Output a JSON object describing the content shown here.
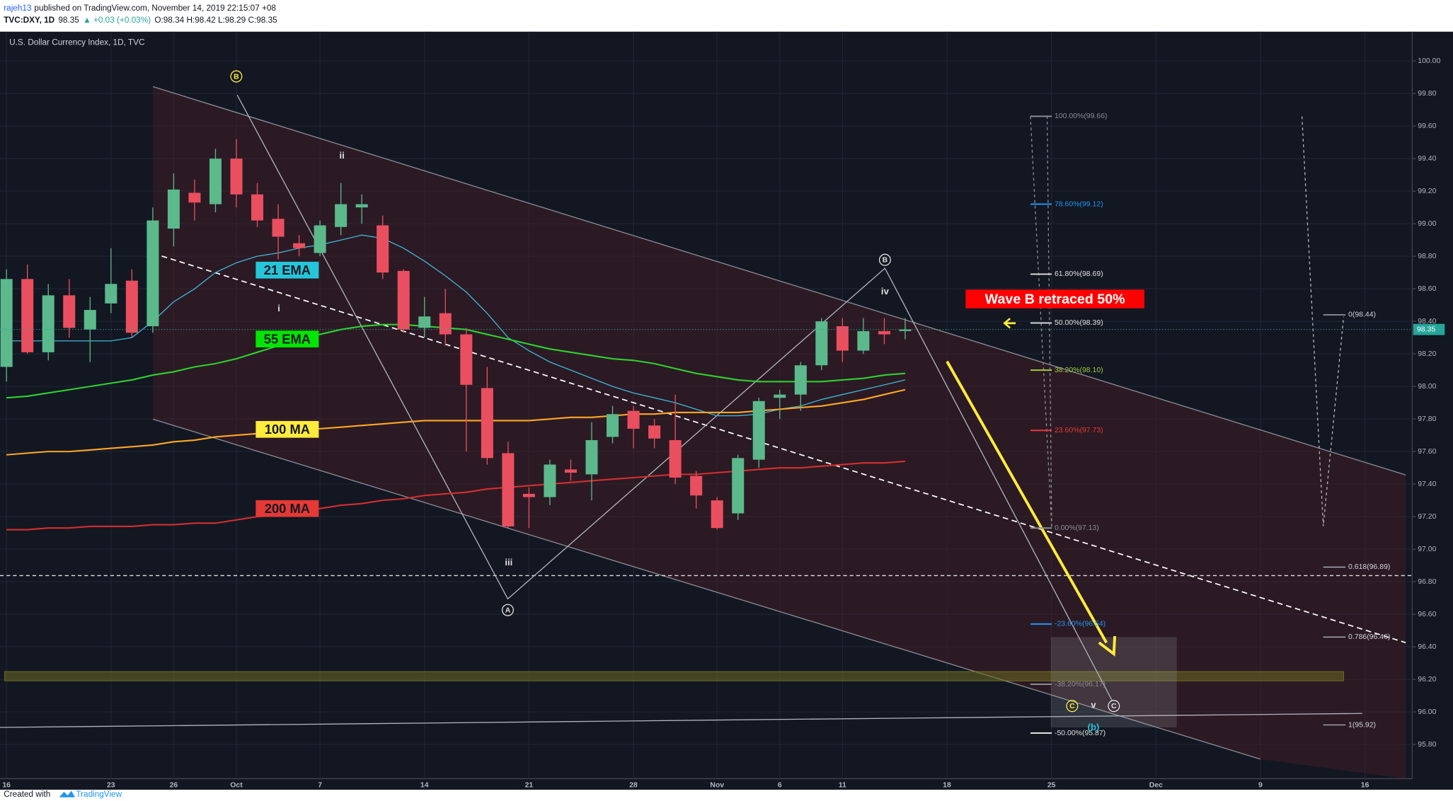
{
  "header": {
    "author": "rajeh13",
    "published": "published on TradingView.com, November 14, 2019 22:15:07 +08",
    "symbol": "TVC:DXY, 1D",
    "last": "98.35",
    "change": "▲ +0.03 (+0.03%)",
    "ohlc": "O:98.34 H:98.42 L:98.29 C:98.35"
  },
  "footer": {
    "text": "Created with",
    "brand": "TradingView"
  },
  "chart_data": {
    "type": "candlestick",
    "title": "U.S. Dollar Currency Index, 1D, TVC",
    "categories": [
      "16",
      null,
      null,
      null,
      null,
      "23",
      null,
      null,
      "26",
      null,
      null,
      "Oct",
      null,
      null,
      null,
      "7",
      null,
      null,
      null,
      null,
      "14",
      null,
      null,
      null,
      null,
      "21",
      null,
      null,
      null,
      null,
      "28",
      null,
      null,
      null,
      "Nov",
      null,
      null,
      "6",
      null,
      null,
      "11",
      null,
      null,
      null,
      null,
      "18",
      null,
      null,
      null,
      null,
      "25",
      null,
      null,
      null,
      null,
      "Dec",
      null,
      null,
      null,
      null,
      "9",
      null,
      null,
      null,
      null,
      "16"
    ],
    "open": [
      98.12,
      98.66,
      98.21,
      98.56,
      98.35,
      98.51,
      98.65,
      98.37,
      98.97,
      99.19,
      99.12,
      99.4,
      99.18,
      99.03,
      98.88,
      98.82,
      98.98,
      99.1,
      98.99,
      98.71,
      98.36,
      98.45,
      98.32,
      97.99,
      97.59,
      97.34,
      97.32,
      97.49,
      97.46,
      97.69,
      97.85,
      97.76,
      97.67,
      97.45,
      97.3,
      97.22,
      97.55,
      97.93,
      97.95,
      98.13,
      98.37,
      98.22,
      98.34,
      98.34,
      null,
      null,
      null,
      null,
      null,
      null,
      null,
      null,
      null,
      null,
      null,
      null,
      null,
      null,
      null,
      null,
      null,
      null,
      null,
      null,
      null,
      null
    ],
    "high": [
      98.72,
      98.75,
      98.63,
      98.66,
      98.55,
      98.85,
      98.72,
      99.1,
      99.31,
      99.27,
      99.46,
      99.52,
      99.25,
      99.12,
      98.93,
      99.02,
      99.25,
      99.18,
      99.05,
      98.72,
      98.55,
      98.6,
      98.36,
      98.12,
      97.66,
      97.38,
      97.55,
      97.55,
      97.78,
      97.88,
      97.88,
      97.8,
      97.95,
      97.48,
      97.32,
      97.58,
      97.93,
      97.98,
      98.15,
      98.42,
      98.42,
      98.42,
      98.42,
      98.42,
      null,
      null,
      null,
      null,
      null,
      null,
      null,
      null,
      null,
      null,
      null,
      null,
      null,
      null,
      null,
      null,
      null,
      null,
      null,
      null,
      null,
      null
    ],
    "low": [
      98.03,
      98.2,
      98.16,
      98.3,
      98.15,
      98.45,
      98.3,
      98.33,
      98.86,
      99.02,
      99.07,
      99.1,
      98.98,
      98.78,
      98.8,
      98.8,
      98.93,
      99.0,
      98.66,
      98.33,
      98.3,
      98.25,
      97.6,
      97.52,
      97.13,
      97.13,
      97.27,
      97.42,
      97.3,
      97.65,
      97.62,
      97.62,
      97.4,
      97.25,
      97.12,
      97.18,
      97.5,
      97.8,
      97.85,
      98.1,
      98.15,
      98.2,
      98.26,
      98.29,
      null,
      null,
      null,
      null,
      null,
      null,
      null,
      null,
      null,
      null,
      null,
      null,
      null,
      null,
      null,
      null,
      null,
      null,
      null,
      null,
      null,
      null
    ],
    "close": [
      98.66,
      98.21,
      98.56,
      98.36,
      98.47,
      98.63,
      98.33,
      99.02,
      99.21,
      99.13,
      99.4,
      99.18,
      99.02,
      98.92,
      98.85,
      98.99,
      99.12,
      99.12,
      98.7,
      98.35,
      98.43,
      98.32,
      98.01,
      97.56,
      97.14,
      97.32,
      97.52,
      97.47,
      97.67,
      97.83,
      97.74,
      97.68,
      97.44,
      97.33,
      97.13,
      97.56,
      97.91,
      97.95,
      98.13,
      98.4,
      98.22,
      98.34,
      98.32,
      98.35,
      null,
      null,
      null,
      null,
      null,
      null,
      null,
      null,
      null,
      null,
      null,
      null,
      null,
      null,
      null,
      null,
      null,
      null,
      null,
      null,
      null,
      null
    ],
    "up_color": "#5bb98c",
    "down_color": "#ea4f5f",
    "series": [
      {
        "name": "21 EMA",
        "color": "#3fb7d8",
        "label_color": "#26c6da",
        "values": [
          98.28,
          98.28,
          98.28,
          98.28,
          98.28,
          98.28,
          98.3,
          98.4,
          98.52,
          98.6,
          98.7,
          98.76,
          98.8,
          98.82,
          98.85,
          98.87,
          98.9,
          98.93,
          98.91,
          98.85,
          98.77,
          98.68,
          98.58,
          98.45,
          98.3,
          98.22,
          98.15,
          98.1,
          98.05,
          98.0,
          97.96,
          97.93,
          97.9,
          97.86,
          97.82,
          97.82,
          97.83,
          97.86,
          97.88,
          97.92,
          97.95,
          97.98,
          98.01,
          98.04,
          null,
          null,
          null,
          null,
          null,
          null,
          null,
          null,
          null,
          null,
          null,
          null,
          null,
          null,
          null,
          null,
          null,
          null,
          null,
          null,
          null,
          null
        ]
      },
      {
        "name": "55 EMA",
        "color": "#2ed12e",
        "label_color": "#00e600",
        "values": [
          97.93,
          97.94,
          97.96,
          97.98,
          98.0,
          98.02,
          98.04,
          98.07,
          98.09,
          98.12,
          98.14,
          98.17,
          98.21,
          98.25,
          98.29,
          98.32,
          98.35,
          98.37,
          98.38,
          98.38,
          98.37,
          98.36,
          98.35,
          98.32,
          98.29,
          98.26,
          98.23,
          98.21,
          98.19,
          98.17,
          98.16,
          98.14,
          98.11,
          98.08,
          98.06,
          98.04,
          98.03,
          98.03,
          98.03,
          98.03,
          98.04,
          98.05,
          98.07,
          98.08,
          null,
          null,
          null,
          null,
          null,
          null,
          null,
          null,
          null,
          null,
          null,
          null,
          null,
          null,
          null,
          null,
          null,
          null,
          null,
          null,
          null,
          null
        ]
      },
      {
        "name": "100 MA",
        "color": "#ffa726",
        "label_color": "#ffeb3b",
        "values": [
          97.58,
          97.59,
          97.6,
          97.6,
          97.61,
          97.62,
          97.63,
          97.64,
          97.66,
          97.67,
          97.69,
          97.7,
          97.71,
          97.72,
          97.73,
          97.74,
          97.75,
          97.76,
          97.77,
          97.78,
          97.79,
          97.79,
          97.79,
          97.79,
          97.79,
          97.79,
          97.8,
          97.81,
          97.81,
          97.82,
          97.83,
          97.83,
          97.84,
          97.84,
          97.84,
          97.84,
          97.85,
          97.86,
          97.87,
          97.88,
          97.9,
          97.92,
          97.95,
          97.98,
          null,
          null,
          null,
          null,
          null,
          null,
          null,
          null,
          null,
          null,
          null,
          null,
          null,
          null,
          null,
          null,
          null,
          null,
          null,
          null,
          null,
          null
        ]
      },
      {
        "name": "200 MA",
        "color": "#d32f2f",
        "label_color": "#e53935",
        "values": [
          97.12,
          97.12,
          97.13,
          97.13,
          97.14,
          97.14,
          97.14,
          97.15,
          97.15,
          97.16,
          97.16,
          97.18,
          97.2,
          97.21,
          97.23,
          97.25,
          97.27,
          97.28,
          97.3,
          97.31,
          97.33,
          97.34,
          97.35,
          97.37,
          97.38,
          97.39,
          97.4,
          97.41,
          97.42,
          97.43,
          97.44,
          97.45,
          97.46,
          97.46,
          97.47,
          97.48,
          97.49,
          97.5,
          97.5,
          97.51,
          97.52,
          97.53,
          97.53,
          97.54,
          null,
          null,
          null,
          null,
          null,
          null,
          null,
          null,
          null,
          null,
          null,
          null,
          null,
          null,
          null,
          null,
          null,
          null,
          null,
          null,
          null,
          null
        ]
      }
    ],
    "ylim": [
      95.59,
      100.18
    ],
    "yticks": [
      {
        "value": 95.8,
        "label": "95.80"
      },
      {
        "value": 96,
        "label": "96.00"
      },
      {
        "value": 96.2,
        "label": "96.20"
      },
      {
        "value": 96.4,
        "label": "96.40"
      },
      {
        "value": 96.6,
        "label": "96.60"
      },
      {
        "value": 96.8,
        "label": "96.80"
      },
      {
        "value": 97,
        "label": "97.00"
      },
      {
        "value": 97.2,
        "label": "97.20"
      },
      {
        "value": 97.4,
        "label": "97.40"
      },
      {
        "value": 97.6,
        "label": "97.60"
      },
      {
        "value": 97.8,
        "label": "97.80"
      },
      {
        "value": 98,
        "label": "98.00"
      },
      {
        "value": 98.2,
        "label": "98.20"
      },
      {
        "value": 98.4,
        "label": "98.40"
      },
      {
        "value": 98.6,
        "label": "98.60"
      },
      {
        "value": 98.8,
        "label": "98.80"
      },
      {
        "value": 99,
        "label": "99.00"
      },
      {
        "value": 99.2,
        "label": "99.20"
      },
      {
        "value": 99.4,
        "label": "99.40"
      },
      {
        "value": 99.6,
        "label": "99.60"
      },
      {
        "value": 99.8,
        "label": "99.80"
      },
      {
        "value": 100,
        "label": "100.00"
      }
    ],
    "grid": true,
    "fib_levels": [
      {
        "value": 99.66,
        "label": "100.00%(99.66)",
        "color": "#8a8d96"
      },
      {
        "value": 99.12,
        "label": "78.60%(99.12)",
        "color": "#2196f3"
      },
      {
        "value": 98.69,
        "label": "61.80%(98.69)",
        "color": "#e0e0e0"
      },
      {
        "value": 98.39,
        "label": "50.00%(98.39)",
        "color": "#e0e0e0"
      },
      {
        "value": 98.1,
        "label": "38.20%(98.10)",
        "color": "#9ccc3c"
      },
      {
        "value": 97.73,
        "label": "23.60%(97.73)",
        "color": "#e53935"
      },
      {
        "value": 97.13,
        "label": "0.00%(97.13)",
        "color": "#8a8d96"
      },
      {
        "value": 96.54,
        "label": "-23.60%(96.54)",
        "color": "#2196f3"
      },
      {
        "value": 96.17,
        "label": "-38.20%(96.17)",
        "color": "#8a8d96"
      },
      {
        "value": 95.87,
        "label": "-50.00%(95.87)",
        "color": "#e0e0e0"
      }
    ],
    "fib_extension": [
      {
        "value": 98.44,
        "label": "0(98.44)"
      },
      {
        "value": 96.89,
        "label": "0.618(96.89)"
      },
      {
        "value": 96.46,
        "label": "0.786(96.46)"
      },
      {
        "value": 95.92,
        "label": "1(95.92)"
      }
    ],
    "callout": "Wave B retraced 50%",
    "annotations": [
      {
        "text": "B",
        "color": "#ffeb3b",
        "circled": true
      },
      {
        "text": "ii",
        "color": "#e0e0e0",
        "circled": false
      },
      {
        "text": "i",
        "color": "#e0e0e0",
        "circled": false
      },
      {
        "text": "iii",
        "color": "#e0e0e0",
        "circled": false
      },
      {
        "text": "A",
        "color": "#e0e0e0",
        "circled": true
      },
      {
        "text": "B",
        "color": "#e0e0e0",
        "circled": true
      },
      {
        "text": "iv",
        "color": "#e0e0e0",
        "circled": false
      },
      {
        "text": "C",
        "color": "#ffeb3b",
        "circled": true
      },
      {
        "text": "v",
        "color": "#e0e0e0",
        "circled": false
      },
      {
        "text": "C",
        "color": "#e0e0e0",
        "circled": true
      },
      {
        "text": "(b)",
        "color": "#26c6da",
        "circled": false
      }
    ]
  }
}
